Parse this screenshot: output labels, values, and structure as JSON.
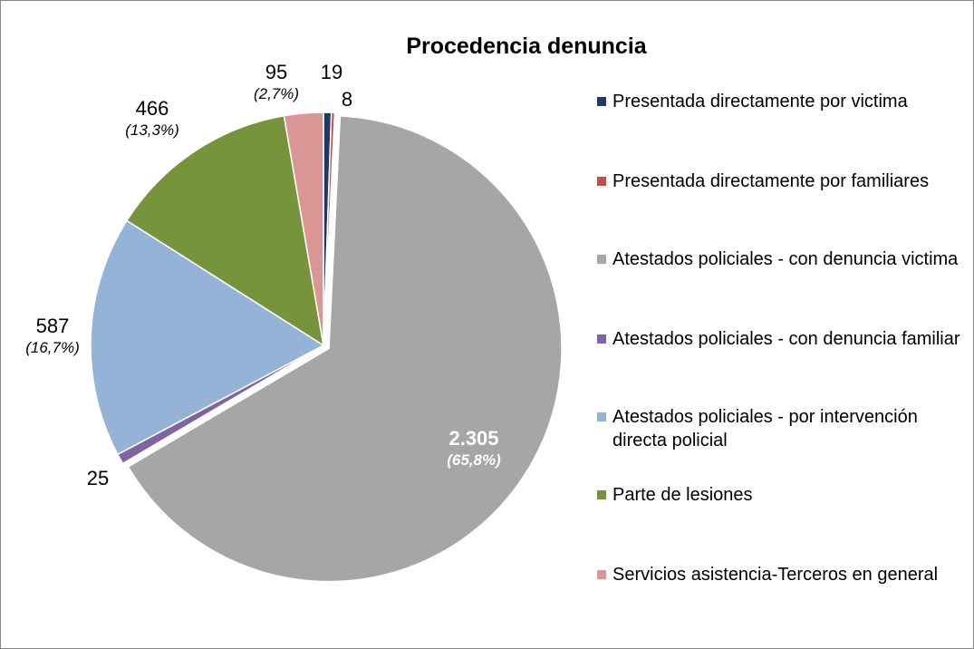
{
  "chart_data": {
    "type": "pie",
    "title": "Procedencia denuncia",
    "legend_position": "right",
    "slices": [
      {
        "name": "Presentada directamente por victima",
        "value": 19,
        "label": "19",
        "pct": "",
        "color": "#1F3864"
      },
      {
        "name": "Presentada directamente por familiares",
        "value": 8,
        "label": "8",
        "pct": "",
        "color": "#C0504D"
      },
      {
        "name": "Atestados policiales - con denuncia victima",
        "value": 2305,
        "label": "2.305",
        "pct": "(65,8%)",
        "color": "#A6A6A6"
      },
      {
        "name": "Atestados policiales - con denuncia familiar",
        "value": 25,
        "label": "25",
        "pct": "",
        "color": "#8064A2"
      },
      {
        "name": "Atestados policiales - por intervención directa policial",
        "value": 587,
        "label": "587",
        "pct": "(16,7%)",
        "color": "#95B3D7"
      },
      {
        "name": "Parte de lesiones",
        "value": 466,
        "label": "466",
        "pct": "(13,3%)",
        "color": "#77933C"
      },
      {
        "name": "Servicios asistencia-Terceros  en general",
        "value": 95,
        "label": "95",
        "pct": "(2,7%)",
        "color": "#D99694"
      }
    ]
  }
}
